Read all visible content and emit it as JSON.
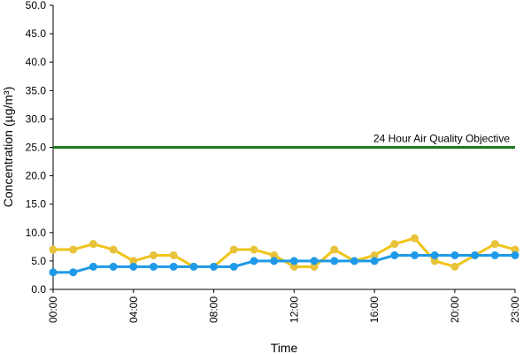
{
  "chart_data": {
    "type": "line",
    "title": "",
    "xlabel": "Time",
    "ylabel": "Concentration (µg/m³)",
    "ylim": [
      0,
      50
    ],
    "yticks": [
      "0.0",
      "5.0",
      "10.0",
      "15.0",
      "20.0",
      "25.0",
      "30.0",
      "35.0",
      "40.0",
      "45.0",
      "50.0"
    ],
    "xticks": [
      {
        "hour": 0,
        "label": "00:00"
      },
      {
        "hour": 4,
        "label": "04:00"
      },
      {
        "hour": 8,
        "label": "08:00"
      },
      {
        "hour": 12,
        "label": "12:00"
      },
      {
        "hour": 16,
        "label": "16:00"
      },
      {
        "hour": 20,
        "label": "20:00"
      },
      {
        "hour": 23,
        "label": "23:00"
      }
    ],
    "grid": false,
    "x": [
      0,
      1,
      2,
      3,
      4,
      5,
      6,
      7,
      8,
      9,
      10,
      11,
      12,
      13,
      14,
      15,
      16,
      17,
      18,
      19,
      20,
      21,
      22,
      23
    ],
    "series": [
      {
        "color": "#f0c419",
        "marker_color": "#e8c23a",
        "values": [
          7,
          7,
          8,
          7,
          5,
          6,
          6,
          4,
          4,
          7,
          7,
          6,
          4,
          4,
          7,
          5,
          6,
          8,
          9,
          5,
          4,
          6,
          8,
          7
        ]
      },
      {
        "color": "#1f9ae8",
        "marker_color": "#1f9ae8",
        "values": [
          3,
          3,
          4,
          4,
          4,
          4,
          4,
          4,
          4,
          4,
          5,
          5,
          5,
          5,
          5,
          5,
          5,
          6,
          6,
          6,
          6,
          6,
          6,
          6
        ]
      }
    ],
    "reference_line": {
      "value": 25,
      "label": "24 Hour Air Quality Objective",
      "color": "#1f7a1f"
    }
  }
}
